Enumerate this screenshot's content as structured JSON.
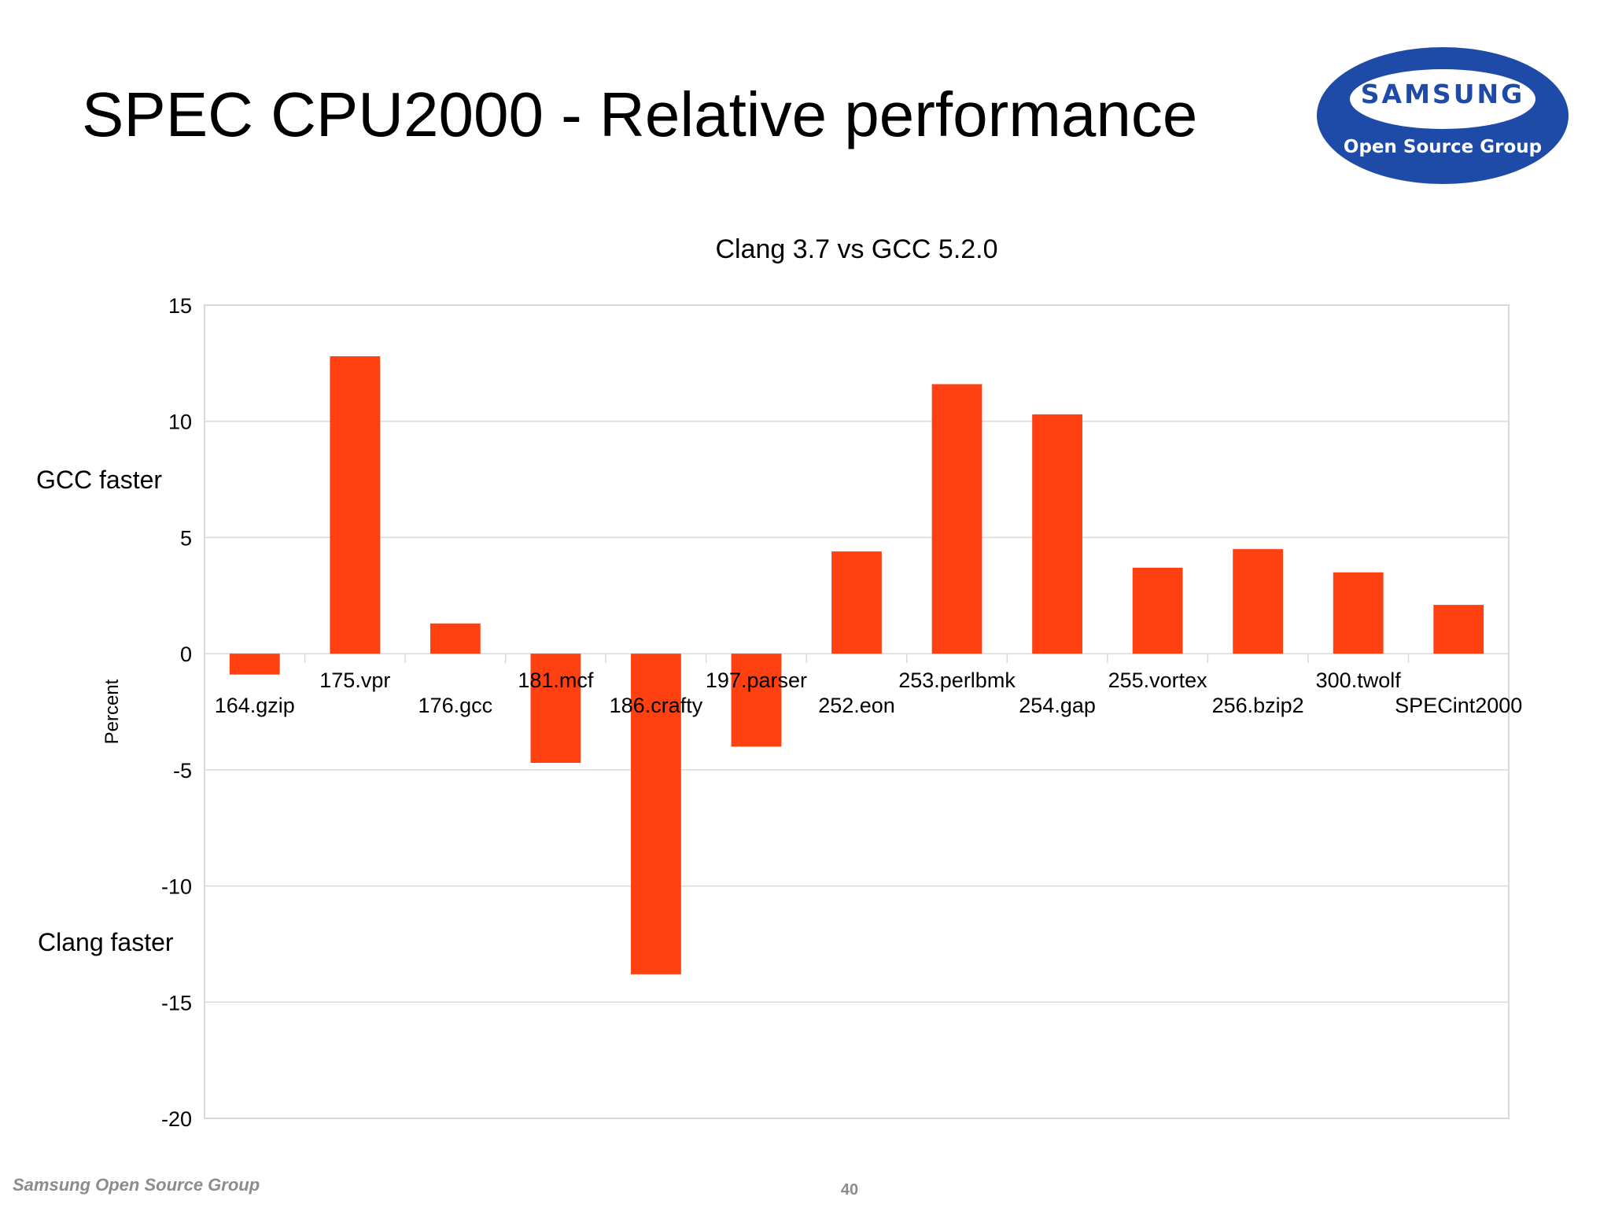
{
  "slide": {
    "title": "SPEC CPU2000 - Relative performance",
    "logo_brand": "SAMSUNG",
    "logo_group": "Open Source Group",
    "gcc_faster_label": "GCC faster",
    "clang_faster_label": "Clang faster",
    "footer_text": "Samsung Open Source Group",
    "page_number": "40"
  },
  "colors": {
    "bar": "#ff4010",
    "logo_blue": "#1e4aa8",
    "grid": "#d9d9d9"
  },
  "chart_data": {
    "type": "bar",
    "title": "Clang 3.7 vs GCC 5.2.0",
    "xlabel": "",
    "ylabel": "Percent",
    "ylim": [
      -20,
      15
    ],
    "yticks": [
      15,
      10,
      5,
      0,
      -5,
      -10,
      -15,
      -20
    ],
    "grid": true,
    "categories": [
      "164.gzip",
      "175.vpr",
      "176.gcc",
      "181.mcf",
      "186.crafty",
      "197.parser",
      "252.eon",
      "253.perlbmk",
      "254.gap",
      "255.vortex",
      "256.bzip2",
      "300.twolf",
      "SPECint2000"
    ],
    "values": [
      -0.9,
      12.8,
      1.3,
      -4.7,
      -13.8,
      -4.0,
      4.4,
      11.6,
      10.3,
      3.7,
      4.5,
      3.5,
      2.1
    ]
  }
}
